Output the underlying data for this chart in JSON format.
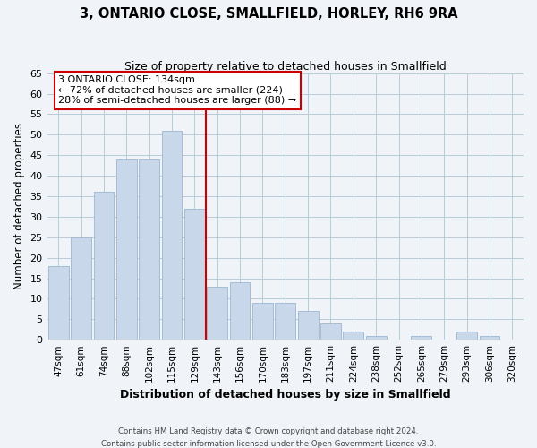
{
  "title": "3, ONTARIO CLOSE, SMALLFIELD, HORLEY, RH6 9RA",
  "subtitle": "Size of property relative to detached houses in Smallfield",
  "xlabel": "Distribution of detached houses by size in Smallfield",
  "ylabel": "Number of detached properties",
  "categories": [
    "47sqm",
    "61sqm",
    "74sqm",
    "88sqm",
    "102sqm",
    "115sqm",
    "129sqm",
    "143sqm",
    "156sqm",
    "170sqm",
    "183sqm",
    "197sqm",
    "211sqm",
    "224sqm",
    "238sqm",
    "252sqm",
    "265sqm",
    "279sqm",
    "293sqm",
    "306sqm",
    "320sqm"
  ],
  "values": [
    18,
    25,
    36,
    44,
    44,
    51,
    32,
    13,
    14,
    9,
    9,
    7,
    4,
    2,
    1,
    0,
    1,
    0,
    2,
    1,
    0
  ],
  "bar_color": "#c8d8ea",
  "bar_edge_color": "#9ab8d0",
  "vline_x": 6.5,
  "vline_color": "#cc0000",
  "annotation_line1": "3 ONTARIO CLOSE: 134sqm",
  "annotation_line2": "← 72% of detached houses are smaller (224)",
  "annotation_line3": "28% of semi-detached houses are larger (88) →",
  "annotation_box_color": "#ffffff",
  "annotation_box_edge": "#cc0000",
  "ylim": [
    0,
    65
  ],
  "yticks": [
    0,
    5,
    10,
    15,
    20,
    25,
    30,
    35,
    40,
    45,
    50,
    55,
    60,
    65
  ],
  "footer_line1": "Contains HM Land Registry data © Crown copyright and database right 2024.",
  "footer_line2": "Contains public sector information licensed under the Open Government Licence v3.0.",
  "bg_color": "#f0f4f8",
  "grid_color": "#b8ccd8"
}
